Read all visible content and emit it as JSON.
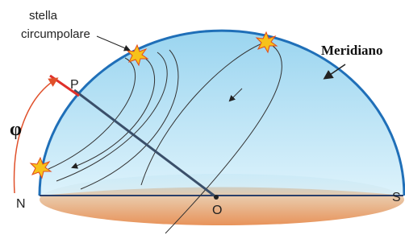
{
  "labels": {
    "star_line1": "stella",
    "star_line2": "circumpolare",
    "meridian": "Meridiano",
    "pole": "P",
    "latitude": "φ",
    "north": "N",
    "observer": "O",
    "south": "S"
  }
}
